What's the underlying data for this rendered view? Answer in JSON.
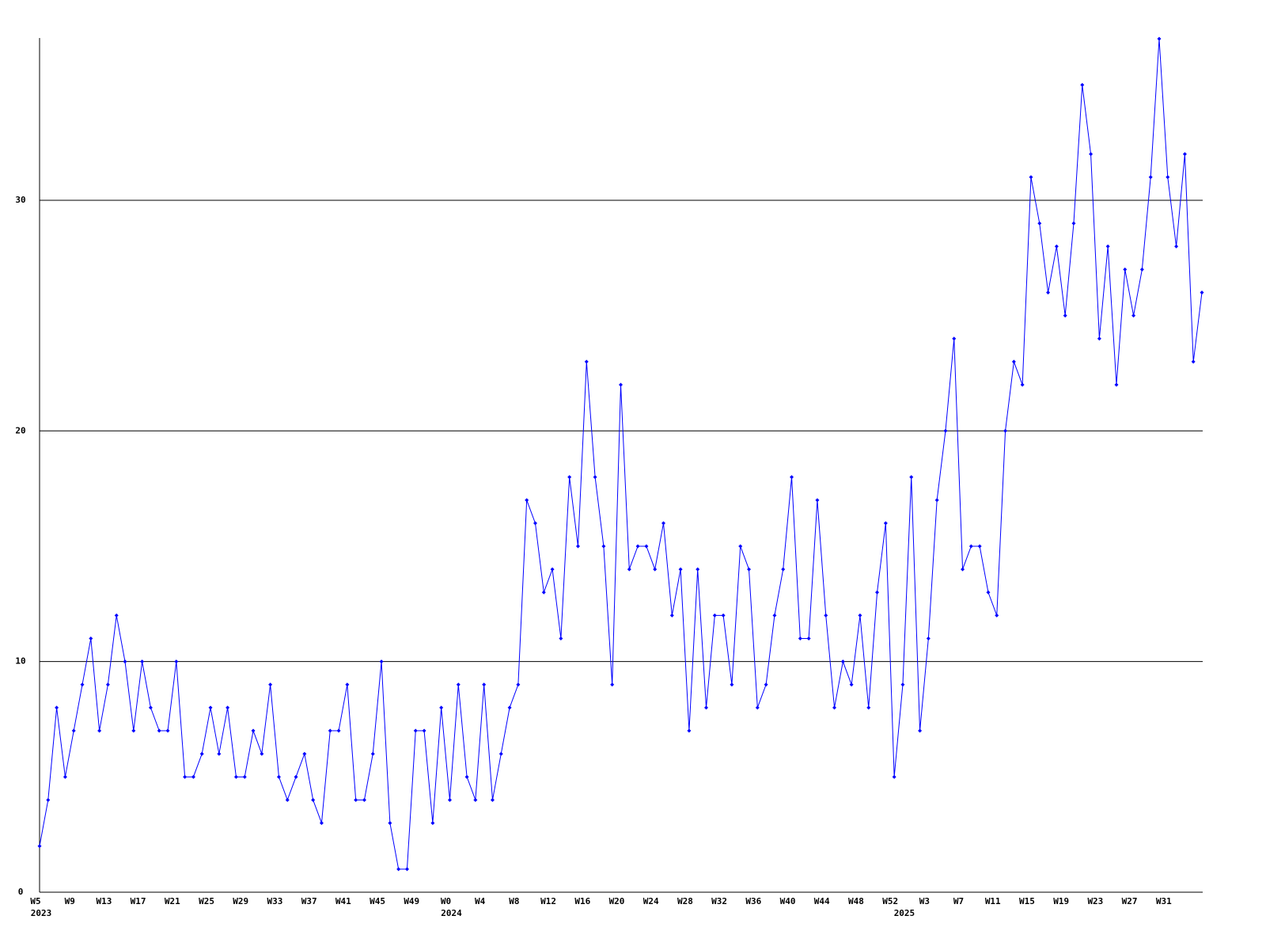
{
  "chart_data": {
    "type": "line",
    "color": "#0000ff",
    "markers": true,
    "grid": true,
    "ylim": [
      0,
      37
    ],
    "yticks": [
      0,
      10,
      20,
      30
    ],
    "categories": [
      "W5",
      null,
      null,
      null,
      "W9",
      null,
      null,
      null,
      "W13",
      null,
      null,
      null,
      "W17",
      null,
      null,
      null,
      "W21",
      null,
      null,
      null,
      "W25",
      null,
      null,
      null,
      "W29",
      null,
      null,
      null,
      "W33",
      null,
      null,
      null,
      "W37",
      null,
      null,
      null,
      "W41",
      null,
      null,
      null,
      "W45",
      null,
      null,
      null,
      "W49",
      null,
      null,
      null,
      "W0",
      null,
      null,
      null,
      "W4",
      null,
      null,
      null,
      "W8",
      null,
      null,
      null,
      "W12",
      null,
      null,
      null,
      "W16",
      null,
      null,
      null,
      "W20",
      null,
      null,
      null,
      "W24",
      null,
      null,
      null,
      "W28",
      null,
      null,
      null,
      "W32",
      null,
      null,
      null,
      "W36",
      null,
      null,
      null,
      "W40",
      null,
      null,
      null,
      "W44",
      null,
      null,
      null,
      "W48",
      null,
      null,
      null,
      "W52",
      null,
      null,
      null,
      "W3",
      null,
      null,
      null,
      "W7",
      null,
      null,
      null,
      "W11",
      null,
      null,
      null,
      "W15",
      null,
      null,
      null,
      "W19",
      null,
      null,
      null,
      "W23",
      null,
      null,
      null,
      "W27",
      null,
      null,
      null,
      "W31",
      null,
      null,
      null,
      null
    ],
    "category_years": [
      "2023",
      null,
      null,
      null,
      null,
      null,
      null,
      null,
      null,
      null,
      null,
      null,
      null,
      null,
      null,
      null,
      null,
      null,
      null,
      null,
      null,
      null,
      null,
      null,
      null,
      null,
      null,
      null,
      null,
      null,
      null,
      null,
      null,
      null,
      null,
      null,
      null,
      null,
      null,
      null,
      null,
      null,
      null,
      null,
      null,
      null,
      null,
      null,
      "2024",
      null,
      null,
      null,
      null,
      null,
      null,
      null,
      null,
      null,
      null,
      null,
      null,
      null,
      null,
      null,
      null,
      null,
      null,
      null,
      null,
      null,
      null,
      null,
      null,
      null,
      null,
      null,
      null,
      null,
      null,
      null,
      null,
      null,
      null,
      null,
      null,
      null,
      null,
      null,
      null,
      null,
      null,
      null,
      null,
      null,
      null,
      null,
      null,
      null,
      null,
      null,
      null,
      "2025",
      null,
      null,
      null,
      null,
      null,
      null,
      null,
      null,
      null,
      null,
      null,
      null,
      null,
      null,
      null,
      null,
      null,
      null,
      null,
      null,
      null,
      null,
      null,
      null,
      null,
      null,
      null,
      null,
      null,
      null,
      null,
      null,
      null,
      null
    ],
    "values": [
      2,
      4,
      8,
      5,
      7,
      9,
      11,
      7,
      9,
      12,
      10,
      7,
      10,
      8,
      7,
      7,
      10,
      5,
      5,
      6,
      8,
      6,
      8,
      5,
      5,
      7,
      6,
      9,
      5,
      4,
      5,
      6,
      4,
      3,
      7,
      7,
      9,
      4,
      4,
      6,
      10,
      3,
      1,
      1,
      7,
      7,
      3,
      8,
      4,
      9,
      5,
      4,
      9,
      4,
      6,
      8,
      9,
      17,
      16,
      13,
      14,
      11,
      18,
      15,
      23,
      18,
      15,
      9,
      22,
      14,
      15,
      15,
      14,
      16,
      12,
      14,
      7,
      14,
      8,
      12,
      12,
      9,
      15,
      14,
      8,
      9,
      12,
      14,
      18,
      11,
      11,
      17,
      12,
      8,
      10,
      9,
      12,
      8,
      13,
      16,
      5,
      9,
      18,
      7,
      11,
      17,
      20,
      24,
      14,
      15,
      15,
      13,
      12,
      20,
      23,
      22,
      31,
      29,
      26,
      28,
      25,
      29,
      35,
      32,
      24,
      28,
      22,
      27,
      25,
      27,
      31,
      37,
      31,
      28,
      32,
      23,
      26
    ]
  }
}
